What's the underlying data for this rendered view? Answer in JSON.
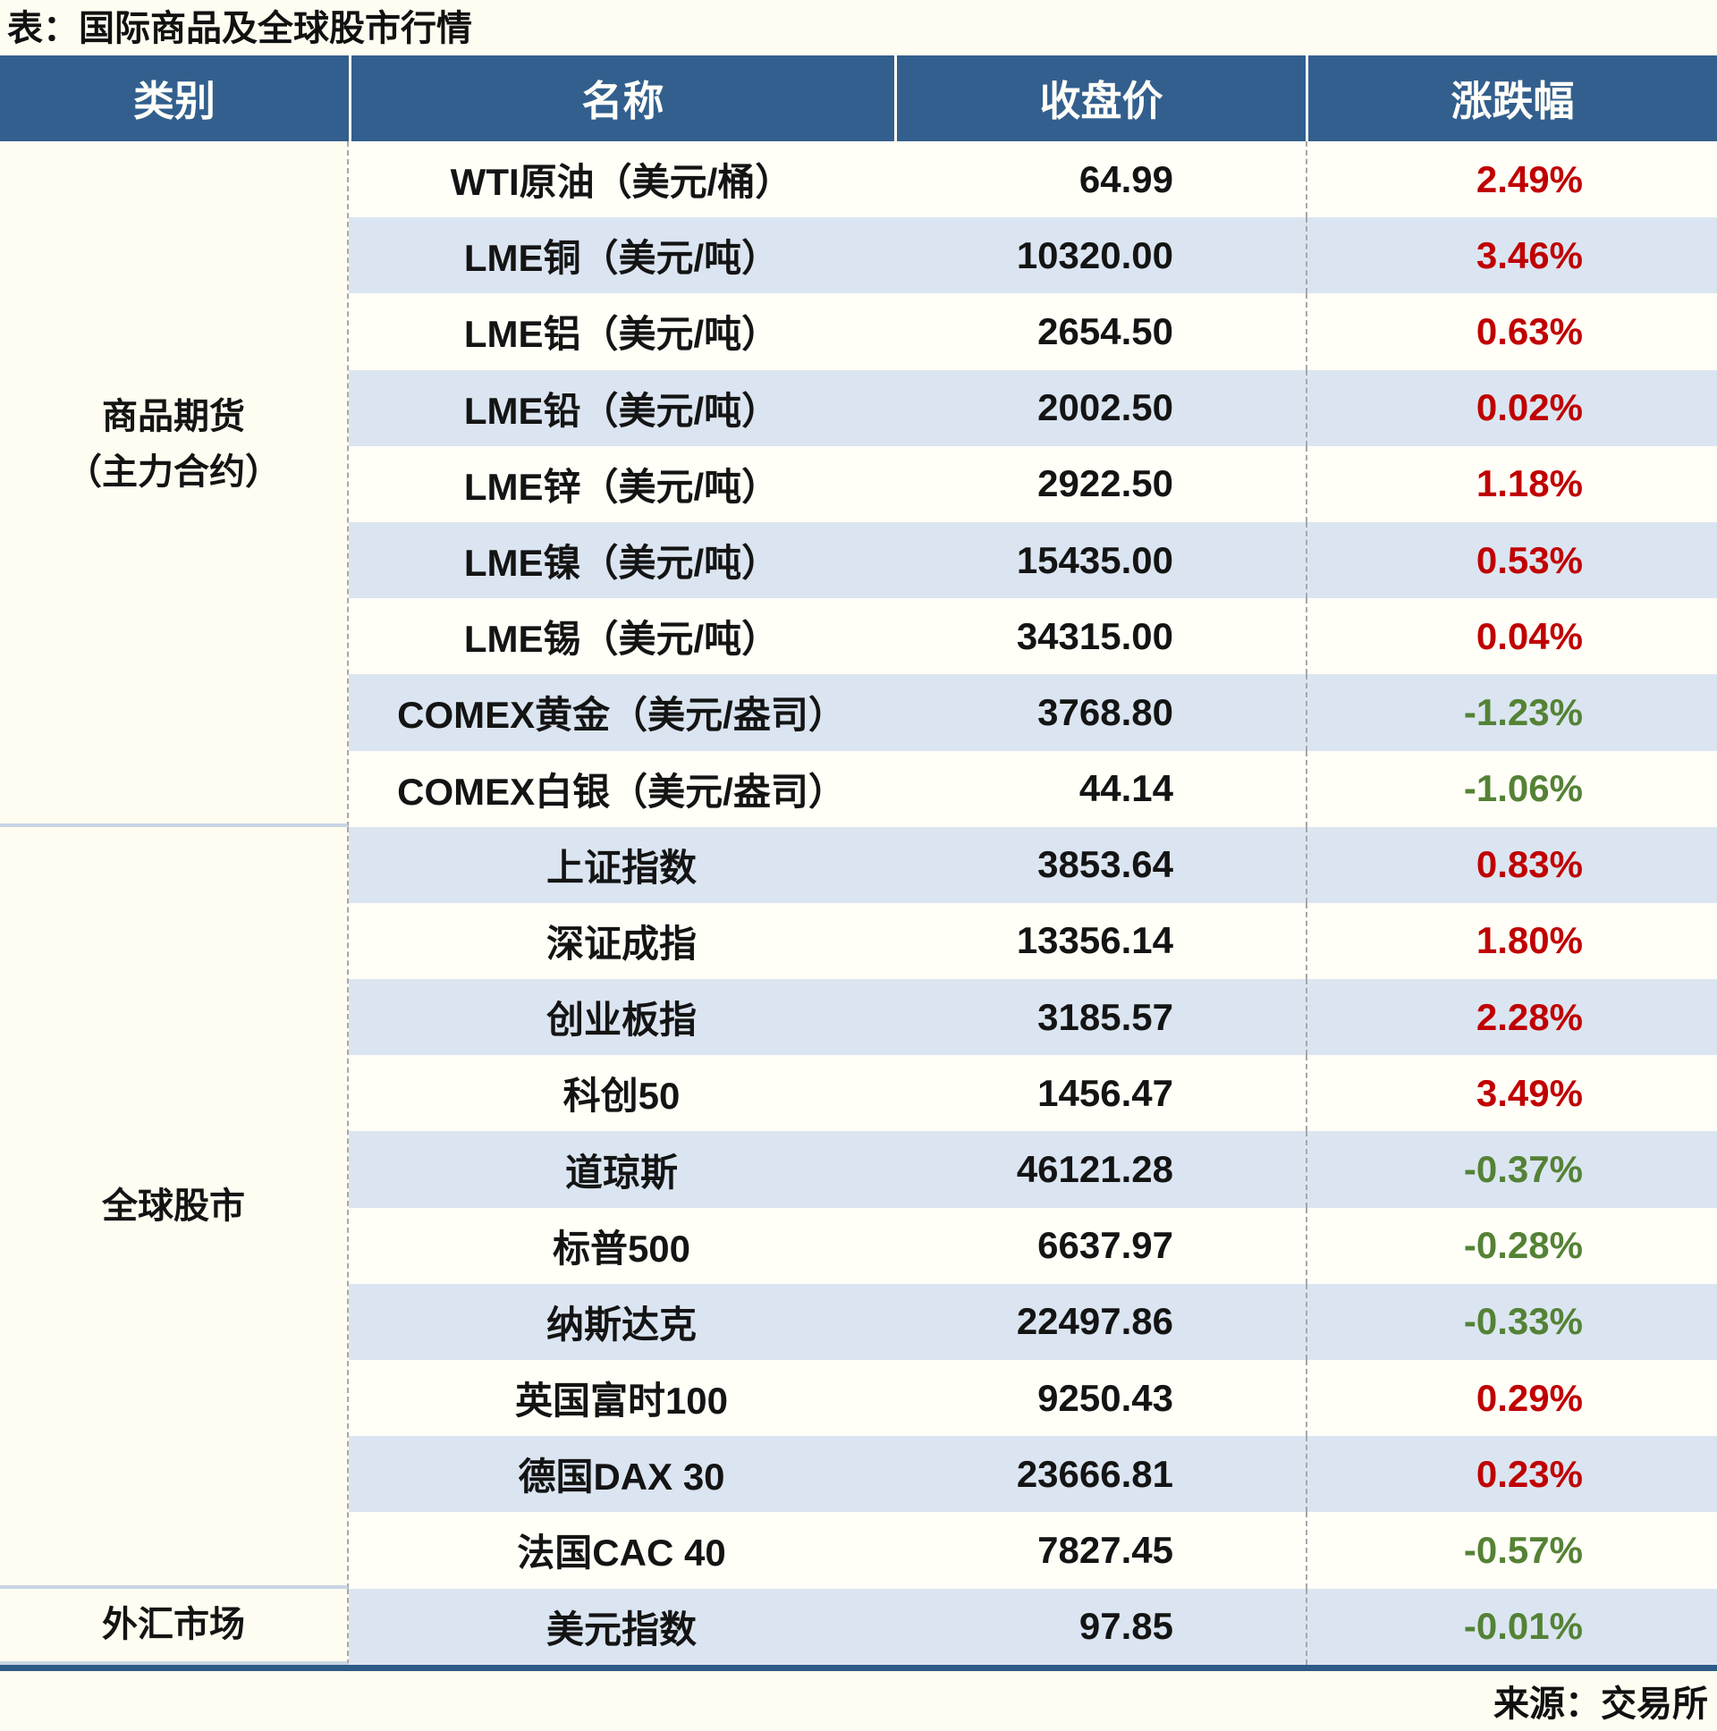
{
  "title": "表：国际商品及全球股市行情",
  "footer": {
    "source": "来源：交易所"
  },
  "colors": {
    "header_bg": "#325F8E",
    "stripe_bg": "#DBE5F1",
    "up_red": "#C00000",
    "down_green": "#548235",
    "bottom_line": "#2D5A87",
    "category_divider": "#C8D5E3"
  },
  "chart_data": {
    "type": "table",
    "title": "国际商品及全球股市行情",
    "columns": [
      "类别",
      "名称",
      "收盘价",
      "涨跌幅"
    ],
    "categories": [
      {
        "label": "商品期货",
        "label_line2": "（主力合约）",
        "row_span": 9
      },
      {
        "label": "全球股市",
        "label_line2": "",
        "row_span": 10
      },
      {
        "label": "外汇市场",
        "label_line2": "",
        "row_span": 1
      }
    ],
    "rows": [
      {
        "category": "商品期货（主力合约）",
        "name": "WTI原油（美元/桶）",
        "close": "64.99",
        "change": "2.49%",
        "direction": "up"
      },
      {
        "category": "商品期货（主力合约）",
        "name": "LME铜（美元/吨）",
        "close": "10320.00",
        "change": "3.46%",
        "direction": "up"
      },
      {
        "category": "商品期货（主力合约）",
        "name": "LME铝（美元/吨）",
        "close": "2654.50",
        "change": "0.63%",
        "direction": "up"
      },
      {
        "category": "商品期货（主力合约）",
        "name": "LME铅（美元/吨）",
        "close": "2002.50",
        "change": "0.02%",
        "direction": "up"
      },
      {
        "category": "商品期货（主力合约）",
        "name": "LME锌（美元/吨）",
        "close": "2922.50",
        "change": "1.18%",
        "direction": "up"
      },
      {
        "category": "商品期货（主力合约）",
        "name": "LME镍（美元/吨）",
        "close": "15435.00",
        "change": "0.53%",
        "direction": "up"
      },
      {
        "category": "商品期货（主力合约）",
        "name": "LME锡（美元/吨）",
        "close": "34315.00",
        "change": "0.04%",
        "direction": "up"
      },
      {
        "category": "商品期货（主力合约）",
        "name": "COMEX黄金（美元/盎司）",
        "close": "3768.80",
        "change": "-1.23%",
        "direction": "down"
      },
      {
        "category": "商品期货（主力合约）",
        "name": "COMEX白银（美元/盎司）",
        "close": "44.14",
        "change": "-1.06%",
        "direction": "down"
      },
      {
        "category": "全球股市",
        "name": "上证指数",
        "close": "3853.64",
        "change": "0.83%",
        "direction": "up"
      },
      {
        "category": "全球股市",
        "name": "深证成指",
        "close": "13356.14",
        "change": "1.80%",
        "direction": "up"
      },
      {
        "category": "全球股市",
        "name": "创业板指",
        "close": "3185.57",
        "change": "2.28%",
        "direction": "up"
      },
      {
        "category": "全球股市",
        "name": "科创50",
        "close": "1456.47",
        "change": "3.49%",
        "direction": "up"
      },
      {
        "category": "全球股市",
        "name": "道琼斯",
        "close": "46121.28",
        "change": "-0.37%",
        "direction": "down"
      },
      {
        "category": "全球股市",
        "name": "标普500",
        "close": "6637.97",
        "change": "-0.28%",
        "direction": "down"
      },
      {
        "category": "全球股市",
        "name": "纳斯达克",
        "close": "22497.86",
        "change": "-0.33%",
        "direction": "down"
      },
      {
        "category": "全球股市",
        "name": "英国富时100",
        "close": "9250.43",
        "change": "0.29%",
        "direction": "up"
      },
      {
        "category": "全球股市",
        "name": "德国DAX 30",
        "close": "23666.81",
        "change": "0.23%",
        "direction": "up"
      },
      {
        "category": "全球股市",
        "name": "法国CAC 40",
        "close": "7827.45",
        "change": "-0.57%",
        "direction": "down"
      },
      {
        "category": "外汇市场",
        "name": "美元指数",
        "close": "97.85",
        "change": "-0.01%",
        "direction": "down"
      }
    ]
  }
}
